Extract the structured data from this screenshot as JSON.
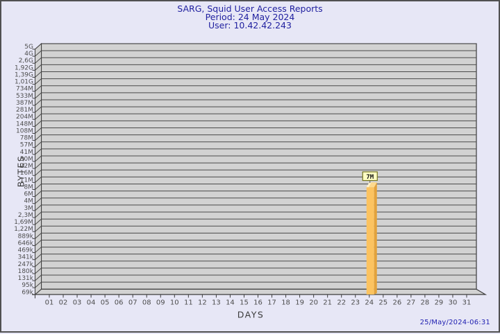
{
  "header": {
    "title": "SARG, Squid User Access Reports",
    "period": "Period: 24 May 2024",
    "user": "User: 10.42.42.243"
  },
  "footer": {
    "timestamp": "25/May/2024-06:31"
  },
  "chart_data": {
    "type": "bar",
    "title": "SARG, Squid User Access Reports",
    "subtitle": "Period: 24 May 2024 — User: 10.42.42.243",
    "xlabel": "DAYS",
    "ylabel": "BYTES",
    "y_scale": "log",
    "grid": true,
    "y_ticks": [
      "5G",
      "4G",
      "2,6G",
      "1,92G",
      "1,39G",
      "1,01G",
      "734M",
      "533M",
      "387M",
      "281M",
      "204M",
      "148M",
      "108M",
      "78M",
      "57M",
      "41M",
      "30M",
      "22M",
      "16M",
      "11M",
      "8M",
      "6M",
      "4M",
      "3M",
      "2,3M",
      "1,69M",
      "1,22M",
      "889k",
      "646k",
      "469k",
      "341k",
      "247k",
      "180k",
      "131k",
      "95k",
      "69k"
    ],
    "x_ticks": [
      "01",
      "02",
      "03",
      "04",
      "05",
      "06",
      "07",
      "08",
      "09",
      "10",
      "11",
      "12",
      "13",
      "14",
      "15",
      "16",
      "17",
      "18",
      "19",
      "20",
      "21",
      "22",
      "23",
      "24",
      "25",
      "26",
      "27",
      "28",
      "29",
      "30",
      "31"
    ],
    "bars": [
      {
        "day": "24",
        "value_bytes": 7000000,
        "value_label": "7M"
      }
    ],
    "colors": {
      "background": "#e7e7f6",
      "wall_bg": "#d2d2d2",
      "gridline": "#4a4a4a",
      "axis": "#3c3c3c",
      "tick_text": "#4d4d4d",
      "title_text": "#2121a0",
      "timestamp_text": "#2222b2",
      "bar_front": "#fcc360",
      "bar_side": "#e2a23c",
      "bar_top": "#fdd98e",
      "bar_top_highlight": "#fff3cf",
      "label_box_bg": "#ffffc4",
      "label_box_border": "#73731c",
      "label_box_text": "#111111"
    }
  }
}
